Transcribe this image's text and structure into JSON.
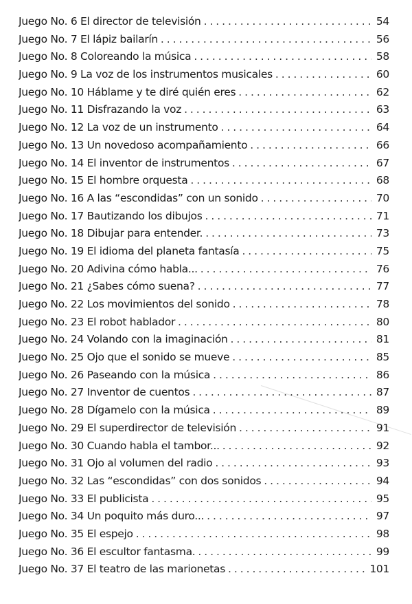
{
  "entries": [
    {
      "label": "Juego No. 6 El director de televisión",
      "page": "54"
    },
    {
      "label": "Juego No. 7 El lápiz bailarín",
      "page": "56"
    },
    {
      "label": "Juego No. 8 Coloreando la música",
      "page": "58"
    },
    {
      "label": "Juego No. 9 La voz de los instrumentos musicales",
      "page": "60"
    },
    {
      "label": "Juego No. 10 Háblame y te diré quién eres",
      "page": "62"
    },
    {
      "label": "Juego No. 11 Disfrazando la voz",
      "page": "63"
    },
    {
      "label": "Juego No. 12 La voz de un instrumento",
      "page": "64"
    },
    {
      "label": "Juego No. 13 Un novedoso acompañamiento",
      "page": "66"
    },
    {
      "label": "Juego No. 14 El inventor de instrumentos",
      "page": "67"
    },
    {
      "label": "Juego No. 15 El hombre orquesta",
      "page": "68"
    },
    {
      "label": "Juego No. 16 A las “escondidas” con un sonido",
      "page": "70"
    },
    {
      "label": "Juego No. 17 Bautizando los dibujos",
      "page": "71"
    },
    {
      "label": "Juego No. 18 Dibujar para entender.",
      "page": "73"
    },
    {
      "label": "Juego No. 19 El idioma del planeta fantasía",
      "page": "75"
    },
    {
      "label": "Juego No. 20 Adivina cómo habla...",
      "page": "76"
    },
    {
      "label": "Juego No. 21 ¿Sabes cómo suena?",
      "page": "77"
    },
    {
      "label": "Juego No. 22 Los movimientos del sonido",
      "page": "78"
    },
    {
      "label": "Juego No. 23 El robot hablador",
      "page": "80"
    },
    {
      "label": "Juego No. 24 Volando con la imaginación",
      "page": "81"
    },
    {
      "label": "Juego No. 25 Ojo que el sonido se mueve",
      "page": "85"
    },
    {
      "label": "Juego No. 26 Paseando con la música",
      "page": "86"
    },
    {
      "label": "Juego No. 27 Inventor de cuentos",
      "page": "87"
    },
    {
      "label": "Juego No. 28 Dígamelo con la música",
      "page": "89"
    },
    {
      "label": "Juego No. 29 El superdirector de televisión",
      "page": "91"
    },
    {
      "label": "Juego No. 30 Cuando habla el tambor...",
      "page": "92"
    },
    {
      "label": "Juego No. 31 Ojo al volumen del radio",
      "page": "93"
    },
    {
      "label": "Juego No. 32 Las “escondidas” con dos sonidos",
      "page": "94"
    },
    {
      "label": "Juego No. 33 El publicista",
      "page": "95"
    },
    {
      "label": "Juego No. 34 Un poquito más duro...",
      "page": "97"
    },
    {
      "label": "Juego No. 35 El espejo",
      "page": "98"
    },
    {
      "label": "Juego No. 36 El escultor fantasma.",
      "page": "99"
    },
    {
      "label": "Juego No. 37 El teatro de las marionetas",
      "page": "101"
    }
  ]
}
